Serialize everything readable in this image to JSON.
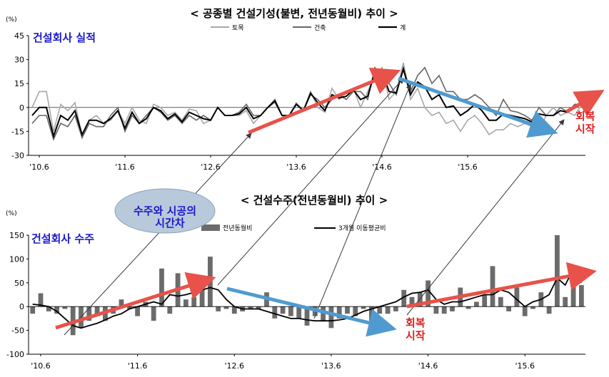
{
  "chart_data": [
    {
      "type": "line",
      "title": "< 공종별 건설기성(불변, 전년동월비) 추이 >",
      "subtitle": "건설회사 실적",
      "unit": "(%)",
      "ylim": [
        -30,
        45
      ],
      "yticks": [
        45,
        30,
        15,
        0,
        -15,
        -30
      ],
      "xtick_labels": [
        "'10.6",
        "'11.6",
        "'12.6",
        "'13.6",
        "'14.6",
        "'15.6"
      ],
      "x_start": "2010-05",
      "x_end": "2015-08",
      "legend": [
        "토목",
        "건축",
        "계"
      ],
      "series": [
        {
          "name": "토목",
          "color": "#a8a8a8",
          "values": [
            0,
            10,
            10,
            -15,
            2,
            -2,
            3,
            -18,
            -8,
            -5,
            -10,
            -8,
            -2,
            -10,
            0,
            -8,
            -10,
            2,
            0,
            -5,
            -3,
            -8,
            -1,
            -2,
            -10,
            -8,
            0,
            -5,
            -5,
            -5,
            -2,
            -10,
            -5,
            0,
            3,
            -5,
            -5,
            3,
            -2,
            10,
            0,
            -3,
            12,
            5,
            10,
            12,
            0,
            10,
            20,
            25,
            5,
            10,
            28,
            5,
            12,
            0,
            -5,
            -3,
            -10,
            -8,
            -15,
            -8,
            -5,
            -10,
            -17,
            -14,
            -14,
            -10,
            -12,
            -10,
            -12,
            -15,
            -5,
            0,
            -5,
            -3,
            -5,
            2
          ]
        },
        {
          "name": "건축",
          "color": "#666666",
          "values": [
            -10,
            -5,
            -5,
            -20,
            -10,
            -12,
            -5,
            -19,
            -10,
            -12,
            -12,
            -5,
            0,
            -15,
            -5,
            -10,
            -5,
            0,
            -3,
            -8,
            -5,
            -10,
            -5,
            -8,
            -5,
            -8,
            0,
            -5,
            -5,
            -3,
            2,
            -5,
            -5,
            0,
            5,
            -5,
            -5,
            2,
            -2,
            8,
            5,
            0,
            5,
            8,
            5,
            10,
            10,
            5,
            25,
            20,
            15,
            8,
            25,
            10,
            20,
            25,
            15,
            20,
            10,
            10,
            5,
            5,
            8,
            5,
            0,
            -5,
            5,
            -2,
            -3,
            -5,
            -8,
            0,
            -5,
            -5,
            0,
            -3,
            2,
            2
          ]
        },
        {
          "name": "계",
          "color": "#000000",
          "values": [
            -5,
            0,
            0,
            -18,
            -5,
            -8,
            -2,
            -17,
            -8,
            -8,
            -10,
            -7,
            -2,
            -13,
            -3,
            -10,
            -7,
            0,
            -2,
            -7,
            -4,
            -9,
            -3,
            -5,
            -7,
            -8,
            0,
            -5,
            -5,
            -4,
            0,
            -7,
            -5,
            0,
            4,
            -5,
            -5,
            2,
            -2,
            9,
            3,
            -2,
            8,
            6,
            7,
            11,
            5,
            7,
            22,
            22,
            10,
            9,
            24,
            8,
            16,
            13,
            5,
            8,
            0,
            1,
            -5,
            -2,
            2,
            -2,
            -8,
            -8,
            -4,
            -5,
            -6,
            -7,
            -9,
            -4,
            -5,
            -5,
            -2,
            -3,
            0,
            2
          ]
        }
      ]
    },
    {
      "type": "bar",
      "title": "< 건설수주(전년동월비) 추이 >",
      "subtitle": "건설회사 수주",
      "unit": "(%)",
      "ylim": [
        -100,
        150
      ],
      "yticks": [
        150,
        100,
        50,
        0,
        -50,
        -100
      ],
      "xtick_labels": [
        "'10.6",
        "'11.6",
        "'12.6",
        "'13.6",
        "'14.6",
        "'15.6"
      ],
      "x_start": "2010-05",
      "x_end": "2015-08",
      "legend": [
        "전년동월비",
        "3개월 이동평균비"
      ],
      "series": [
        {
          "name": "전년동월비",
          "color": "#6b6b6b",
          "values": [
            -15,
            28,
            -10,
            -15,
            -5,
            -60,
            -45,
            -30,
            -20,
            -30,
            -15,
            15,
            -5,
            -20,
            10,
            -30,
            80,
            -15,
            70,
            15,
            20,
            55,
            105,
            -10,
            -5,
            -15,
            -10,
            -5,
            -5,
            30,
            -25,
            -15,
            -20,
            -25,
            -40,
            -20,
            -30,
            -45,
            -25,
            -15,
            -20,
            -5,
            -30,
            -15,
            -15,
            -10,
            35,
            20,
            30,
            55,
            -15,
            -15,
            -10,
            40,
            -5,
            10,
            25,
            85,
            20,
            -10,
            40,
            -20,
            -5,
            30,
            -15,
            150,
            20,
            85,
            45
          ]
        },
        {
          "name": "3개월 이동평균비",
          "color": "#000000",
          "values": [
            5,
            3,
            0,
            -10,
            -25,
            -40,
            -45,
            -40,
            -35,
            -28,
            -20,
            -15,
            -5,
            0,
            5,
            10,
            5,
            25,
            22,
            25,
            30,
            35,
            40,
            35,
            15,
            0,
            -5,
            -5,
            -5,
            -10,
            -15,
            -20,
            -25,
            -25,
            -28,
            -30,
            -30,
            -30,
            -28,
            -25,
            -18,
            -10,
            -5,
            0,
            5,
            10,
            20,
            28,
            30,
            35,
            15,
            5,
            10,
            10,
            15,
            20,
            25,
            25,
            35,
            30,
            15,
            0,
            10,
            15,
            25,
            60,
            45,
            80,
            50
          ]
        }
      ]
    }
  ],
  "annotations": {
    "bubble": [
      "수주와 시공의",
      "시간차"
    ],
    "recovery": [
      "회복",
      "시작"
    ]
  },
  "colors": {
    "red_arrow": "#e8524a",
    "blue_arrow": "#4f9bd0",
    "bubble_fill": "#b8c9dc",
    "blue_text": "#1a1acc",
    "red_text": "#e02020"
  }
}
